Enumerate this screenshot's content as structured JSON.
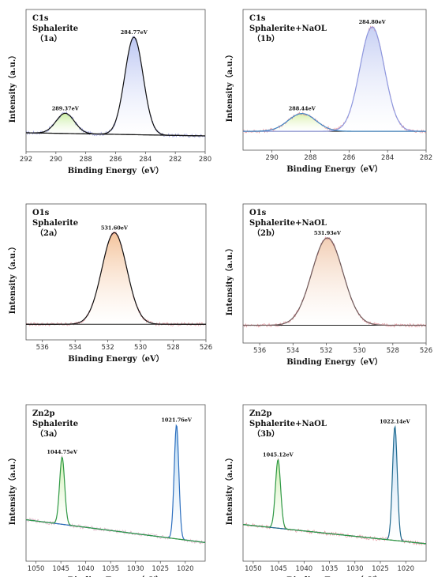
{
  "chart_data": [
    {
      "type": "line",
      "x_reversed": true,
      "xlim": [
        292,
        280
      ],
      "xticks": [
        292,
        290,
        288,
        286,
        284,
        282,
        280
      ],
      "xlabel": "Binding Energy（eV）",
      "ylabel": "Intensity（a.u.）",
      "annotations": [
        "C1s",
        "Sphalerite",
        "（1a）"
      ],
      "baseline": [
        0.06,
        0.03
      ],
      "peaks": [
        {
          "center": 284.77,
          "label": "284.77eV",
          "height": 0.92,
          "fwhm": 1.45,
          "fill": "#b8c3f2",
          "line": "#111111"
        },
        {
          "center": 289.37,
          "label": "289.37eV",
          "height": 0.19,
          "fwhm": 1.45,
          "fill": "#c8ee9e",
          "line": "#111111"
        }
      ],
      "raw_color": "#7e84d6"
    },
    {
      "type": "line",
      "x_reversed": true,
      "xlim": [
        291.5,
        282
      ],
      "xticks": [
        290,
        288,
        286,
        284,
        282
      ],
      "xlabel": "Binding Energy（eV）",
      "ylabel": "Intensity（a.u.）",
      "annotations": [
        "C1s",
        "Sphalerite+NaOL",
        "（1b）"
      ],
      "baseline": [
        0.06,
        0.06
      ],
      "peaks": [
        {
          "center": 284.8,
          "label": "284.80eV",
          "height": 1.0,
          "fwhm": 1.5,
          "fill": "#c4cdf3",
          "line": "#8d98df"
        },
        {
          "center": 288.44,
          "label": "288.44eV",
          "height": 0.17,
          "fwhm": 1.7,
          "fill": "#d8f0a6",
          "line": "#3f86c6"
        }
      ],
      "raw_color": "#e07a86"
    },
    {
      "type": "line",
      "x_reversed": true,
      "xlim": [
        537,
        526
      ],
      "xticks": [
        536,
        534,
        532,
        530,
        528,
        526
      ],
      "xlabel": "Binding Energy（eV）",
      "ylabel": "Intensity（a.u.）",
      "annotations": [
        "O1s",
        "Sphalerite",
        "（2a）"
      ],
      "baseline": [
        0.03,
        0.03
      ],
      "peaks": [
        {
          "center": 531.6,
          "label": "531.60eV",
          "height": 0.92,
          "fwhm": 1.8,
          "fill": "#f3c096",
          "line": "#111111"
        }
      ],
      "raw_color": "#e07a86"
    },
    {
      "type": "line",
      "x_reversed": true,
      "xlim": [
        537,
        526
      ],
      "xticks": [
        536,
        534,
        532,
        530,
        528,
        526
      ],
      "xlabel": "Binding Energy（eV）",
      "ylabel": "Intensity（a.u.）",
      "annotations": [
        "O1s",
        "Sphalerite+NaOL",
        "（2b）"
      ],
      "baseline": [
        0.05,
        0.05
      ],
      "peaks": [
        {
          "center": 531.93,
          "label": "531.93eV",
          "height": 0.85,
          "fwhm": 2.2,
          "fill": "#f1cbb0",
          "line": "#6e5b5b"
        }
      ],
      "raw_color": "#e07a86"
    },
    {
      "type": "line",
      "x_reversed": true,
      "xlim": [
        1052,
        1016
      ],
      "xticks": [
        1050,
        1045,
        1040,
        1035,
        1030,
        1025,
        1020
      ],
      "xlabel": "Binding Energy（eV）",
      "ylabel": "Intensity（a.u.）",
      "annotations": [
        "Zn2p",
        "Sphalerite",
        "（3a）"
      ],
      "baseline": [
        0.24,
        0.05
      ],
      "peaks": [
        {
          "center": 1021.76,
          "label": "1021.76eV",
          "height": 0.95,
          "fwhm": 1.1,
          "fill": "#a9d0ef",
          "line": "#2c6fbf"
        },
        {
          "center": 1044.75,
          "label": "1044.75eV",
          "height": 0.56,
          "fwhm": 1.2,
          "fill": "#c8eea6",
          "line": "#2f9a45"
        }
      ],
      "raw_color": "#d99fb6"
    },
    {
      "type": "line",
      "x_reversed": true,
      "xlim": [
        1052,
        1016
      ],
      "xticks": [
        1050,
        1045,
        1040,
        1035,
        1030,
        1025,
        1020
      ],
      "xlabel": "Binding Energy（eV）",
      "ylabel": "Intensity（a.u.）",
      "annotations": [
        "Zn2p",
        "Sphalerite+NaOL",
        "（3b）"
      ],
      "baseline": [
        0.2,
        0.04
      ],
      "peaks": [
        {
          "center": 1022.14,
          "label": "1022.14eV",
          "height": 0.95,
          "fwhm": 1.1,
          "fill": "#a9d0ef",
          "line": "#1f6a8f"
        },
        {
          "center": 1045.12,
          "label": "1045.12eV",
          "height": 0.57,
          "fwhm": 1.2,
          "fill": "#c8eea6",
          "line": "#2f9a45"
        }
      ],
      "raw_color": "#e07a86"
    }
  ]
}
